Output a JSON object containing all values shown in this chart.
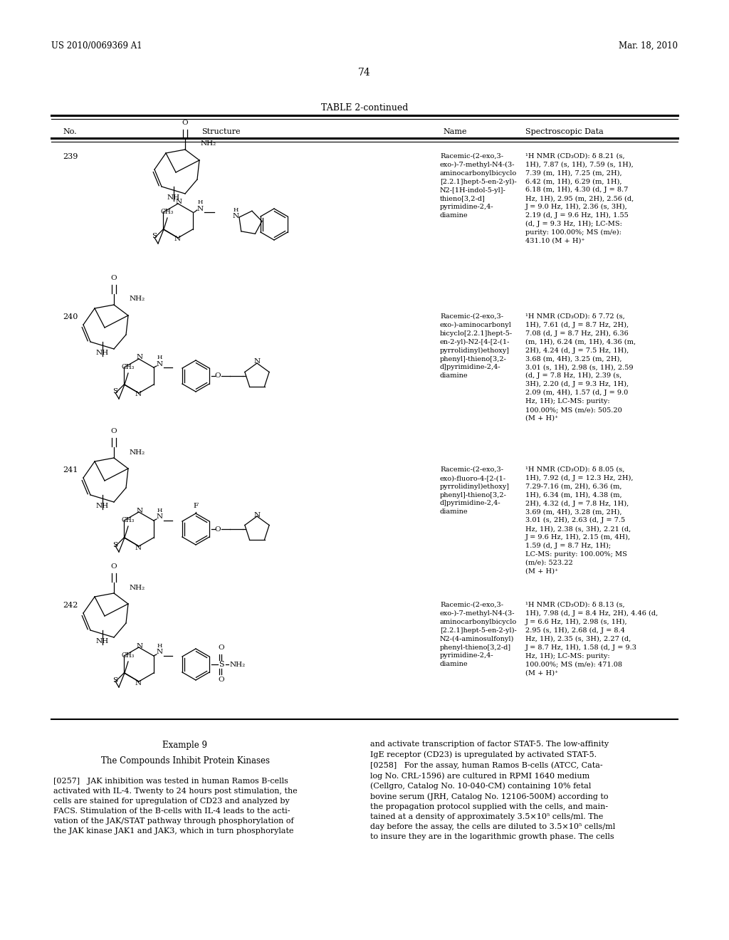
{
  "page_header_left": "US 2010/0069369 A1",
  "page_header_right": "Mar. 18, 2010",
  "page_number": "74",
  "table_title": "TABLE 2-continued",
  "col_headers": [
    "No.",
    "Structure",
    "Name",
    "Spectroscopic Data"
  ],
  "rows": [
    {
      "no": "239",
      "name": "Racemic-(2-exo,3-\nexo-)-7-methyl-N4-(3-\naminocarbonylbicyclo\n[2.2.1]hept-5-en-2-yl)-\nN2-[1H-indol-5-yl]-\nthieno[3,2-d]\npyrimidine-2,4-\ndiamine",
      "spectro": "¹H NMR (CD₃OD): δ 8.21 (s,\n1H), 7.87 (s, 1H), 7.59 (s, 1H),\n7.39 (m, 1H), 7.25 (m, 2H),\n6.42 (m, 1H), 6.29 (m, 1H),\n6.18 (m, 1H), 4.30 (d, J = 8.7\nHz, 1H), 2.95 (m, 2H), 2.56 (d,\nJ = 9.0 Hz, 1H), 2.36 (s, 3H),\n2.19 (d, J = 9.6 Hz, 1H), 1.55\n(d, J = 9.3 Hz, 1H); LC-MS:\npurity: 100.00%; MS (m/e):\n431.10 (M + H)⁺"
    },
    {
      "no": "240",
      "name": "Racemic-(2-exo,3-\nexo-)-aminocarbonyl\nbicyclo[2.2.1]hept-5-\nen-2-yl)-N2-[4-[2-(1-\npyrrolidinyl)ethoxy]\nphenyl]-thieno[3,2-\nd]pyrimidine-2,4-\ndiamine",
      "spectro": "¹H NMR (CD₃OD): δ 7.72 (s,\n1H), 7.61 (d, J = 8.7 Hz, 2H),\n7.08 (d, J = 8.7 Hz, 2H), 6.36\n(m, 1H), 6.24 (m, 1H), 4.36 (m,\n2H), 4.24 (d, J = 7.5 Hz, 1H),\n3.68 (m, 4H), 3.25 (m, 2H),\n3.01 (s, 1H), 2.98 (s, 1H), 2.59\n(d, J = 7.8 Hz, 1H), 2.39 (s,\n3H), 2.20 (d, J = 9.3 Hz, 1H),\n2.09 (m, 4H), 1.57 (d, J = 9.0\nHz, 1H); LC-MS: purity:\n100.00%; MS (m/e): 505.20\n(M + H)⁺"
    },
    {
      "no": "241",
      "name": "Racemic-(2-exo,3-\nexo)-fluoro-4-[2-(1-\npyrrolidinyl)ethoxy]\nphenyl]-thieno[3,2-\nd]pyrimidine-2,4-\ndiamine",
      "spectro": "¹H NMR (CD₃OD): δ 8.05 (s,\n1H), 7.92 (d, J = 12.3 Hz, 2H),\n7.29-7.16 (m, 2H), 6.36 (m,\n1H), 6.34 (m, 1H), 4.38 (m,\n2H), 4.32 (d, J = 7.8 Hz, 1H),\n3.69 (m, 4H), 3.28 (m, 2H),\n3.01 (s, 2H), 2.63 (d, J = 7.5\nHz, 1H), 2.38 (s, 3H), 2.21 (d,\nJ = 9.6 Hz, 1H), 2.15 (m, 4H),\n1.59 (d, J = 8.7 Hz, 1H);\nLC-MS: purity: 100.00%; MS\n(m/e): 523.22\n(M + H)⁺"
    },
    {
      "no": "242",
      "name": "Racemic-(2-exo,3-\nexo-)-7-methyl-N4-(3-\naminocarbonylbicyclo\n[2.2.1]hept-5-en-2-yl)-\nN2-(4-aminosulfonyl)\nphenyl-thieno[3,2-d]\npyrimidine-2,4-\ndiamine",
      "spectro": "¹H NMR (CD₃OD): δ 8.13 (s,\n1H), 7.98 (d, J = 8.4 Hz, 2H), 4.46 (d,\nJ = 6.6 Hz, 1H), 2.98 (s, 1H),\n2.95 (s, 1H), 2.68 (d, J = 8.4\nHz, 1H), 2.35 (s, 3H), 2.27 (d,\nJ = 8.7 Hz, 1H), 1.58 (d, J = 9.3\nHz, 1H); LC-MS: purity:\n100.00%; MS (m/e): 471.08\n(M + H)⁺"
    }
  ],
  "example_title": "Example 9",
  "example_subtitle": "The Compounds Inhibit Protein Kinases",
  "para_left_257": "[0257]   JAK inhibition was tested in human Ramos B-cells\nactivated with IL-4. Twenty to 24 hours post stimulation, the\ncells are stained for upregulation of CD23 and analyzed by\nFACS. Stimulation of the B-cells with IL-4 leads to the acti-\nvation of the JAK/STAT pathway through phosphorylation of\nthe JAK kinase JAK1 and JAK3, which in turn phosphorylate",
  "para_right_258": "and activate transcription of factor STAT-5. The low-affinity\nIgE receptor (CD23) is upregulated by activated STAT-5.\n[0258]   For the assay, human Ramos B-cells (ATCC, Cata-\nlog No. CRL-1596) are cultured in RPMI 1640 medium\n(Cellgro, Catalog No. 10-040-CM) containing 10% fetal\nbovine serum (JRH, Catalog No. 12106-500M) according to\nthe propagation protocol supplied with the cells, and main-\ntained at a density of approximately 3.5×10⁵ cells/ml. The\nday before the assay, the cells are diluted to 3.5×10⁵ cells/ml\nto insure they are in the logarithmic growth phase. The cells",
  "bg_color": "#ffffff",
  "text_color": "#000000"
}
